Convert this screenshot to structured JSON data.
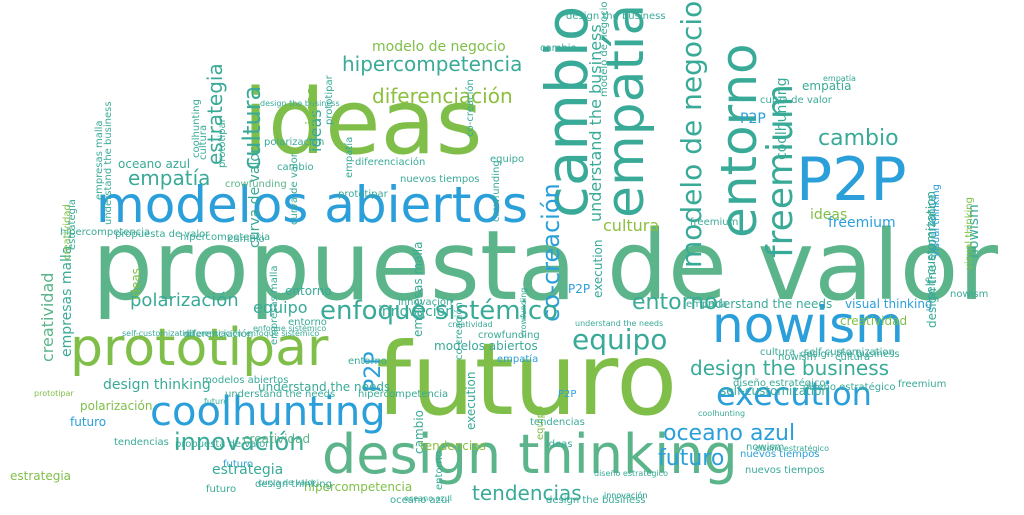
{
  "cloud": {
    "colors": {
      "blue": "#2b9fd9",
      "teal": "#3aaa98",
      "green": "#5bb48a",
      "lime": "#7fbf49",
      "olive": "#8cbf3f"
    },
    "words": [
      {
        "text": "propuesta de valor"
      },
      {
        "text": "futuro"
      },
      {
        "text": "ideas"
      },
      {
        "text": "P2P"
      },
      {
        "text": "modelos abiertos"
      },
      {
        "text": "design thinking"
      },
      {
        "text": "prototipar"
      },
      {
        "text": "nowism"
      },
      {
        "text": "cambio"
      },
      {
        "text": "empatía"
      },
      {
        "text": "entorno"
      },
      {
        "text": "coolhunting"
      },
      {
        "text": "freemium"
      },
      {
        "text": "execution"
      },
      {
        "text": "co-creación"
      },
      {
        "text": "modelo de negocio"
      },
      {
        "text": "enfoque sistémico"
      },
      {
        "text": "innovación"
      },
      {
        "text": "hipercompetencia"
      },
      {
        "text": "design the business"
      },
      {
        "text": "diferenciación"
      },
      {
        "text": "equipo"
      },
      {
        "text": "oceano azul"
      },
      {
        "text": "tendencias"
      },
      {
        "text": "futuro"
      },
      {
        "text": "polarización"
      },
      {
        "text": "cultura"
      },
      {
        "text": "estrategia"
      },
      {
        "text": "creatividad"
      },
      {
        "text": "cambio"
      },
      {
        "text": "empatía"
      },
      {
        "text": "P2P"
      },
      {
        "text": "modelo de negocio"
      },
      {
        "text": "entorno"
      },
      {
        "text": "equipo"
      },
      {
        "text": "ideas"
      },
      {
        "text": "empresas malla"
      },
      {
        "text": "understand the business"
      },
      {
        "text": "design thinking"
      },
      {
        "text": "crowfunding"
      },
      {
        "text": "visual thinking"
      },
      {
        "text": "self-customization"
      },
      {
        "text": "empatía"
      },
      {
        "text": "coolhunting"
      },
      {
        "text": "P2P"
      },
      {
        "text": "freemium"
      },
      {
        "text": "cultura"
      },
      {
        "text": "understand the needs"
      },
      {
        "text": "nowism"
      },
      {
        "text": "modelos abiertos"
      },
      {
        "text": "design the experience"
      },
      {
        "text": "ideas"
      },
      {
        "text": "estrategia"
      },
      {
        "text": "hipercompetencia"
      },
      {
        "text": "creatividad"
      },
      {
        "text": "futuro"
      },
      {
        "text": "polarización"
      },
      {
        "text": "modelo de negocio"
      },
      {
        "text": "tendencias"
      },
      {
        "text": "innovación"
      },
      {
        "text": "oceano azul"
      },
      {
        "text": "execution"
      },
      {
        "text": "curva de valor"
      },
      {
        "text": "self-customization"
      },
      {
        "text": "diseño estratégico"
      },
      {
        "text": "visual thinking"
      },
      {
        "text": "nowism"
      },
      {
        "text": "empatía"
      },
      {
        "text": "diseño estratégico"
      },
      {
        "text": "design the business"
      },
      {
        "text": "cambio"
      },
      {
        "text": "co-creación"
      },
      {
        "text": "nuevos tiempos"
      },
      {
        "text": "understand the needs"
      },
      {
        "text": "equipo"
      },
      {
        "text": "prototipar"
      },
      {
        "text": "crowfunding"
      },
      {
        "text": "entorno"
      },
      {
        "text": "cultura"
      },
      {
        "text": "curva de valor"
      },
      {
        "text": "empresas malla"
      },
      {
        "text": "cambio"
      },
      {
        "text": "entorno"
      },
      {
        "text": "execution"
      },
      {
        "text": "empatía"
      },
      {
        "text": "innovación"
      },
      {
        "text": "crowfunding"
      },
      {
        "text": "modelos abiertos"
      },
      {
        "text": "understand the needs"
      },
      {
        "text": "propuesta de valor"
      },
      {
        "text": "creatividad"
      },
      {
        "text": "tendencias"
      },
      {
        "text": "futuro"
      },
      {
        "text": "estrategia"
      },
      {
        "text": "hipercompetencia"
      },
      {
        "text": "oceano azul"
      },
      {
        "text": "innovación"
      },
      {
        "text": "diseño estratégico"
      },
      {
        "text": "self-customization"
      },
      {
        "text": "diferenciación"
      },
      {
        "text": "enfoque sistémico"
      },
      {
        "text": "ideas"
      },
      {
        "text": "nowism"
      },
      {
        "text": "cultura"
      },
      {
        "text": "freemium"
      },
      {
        "text": "P2P"
      },
      {
        "text": "nuevos tiempos"
      },
      {
        "text": "ideas"
      },
      {
        "text": "design the business"
      },
      {
        "text": "co-creación"
      },
      {
        "text": "prototipar"
      },
      {
        "text": "equipo"
      },
      {
        "text": "curva de valor"
      },
      {
        "text": "design the business"
      },
      {
        "text": "cambio"
      },
      {
        "text": "empatía"
      },
      {
        "text": "prototipar"
      },
      {
        "text": "propuesta de valor"
      },
      {
        "text": "cultura"
      },
      {
        "text": "coolhunting"
      },
      {
        "text": "hipercompetencia"
      },
      {
        "text": "empresas malla"
      },
      {
        "text": "understand the business"
      },
      {
        "text": "creatividad"
      },
      {
        "text": "estrategia"
      },
      {
        "text": "cambio"
      },
      {
        "text": "entorno"
      },
      {
        "text": "diferenciación"
      },
      {
        "text": "design thinking"
      },
      {
        "text": "self-customization"
      },
      {
        "text": "diferenciación"
      },
      {
        "text": "enfoque sistémico"
      },
      {
        "text": "creatividad"
      },
      {
        "text": "ideas"
      },
      {
        "text": "visual thinking"
      },
      {
        "text": "nowism"
      },
      {
        "text": "prototipar"
      },
      {
        "text": "polarización"
      },
      {
        "text": "futuro"
      },
      {
        "text": "tendencias"
      },
      {
        "text": "futuro"
      },
      {
        "text": "curva de valor"
      },
      {
        "text": "hipercompetencia"
      },
      {
        "text": "oceano azul"
      },
      {
        "text": "innovación"
      },
      {
        "text": "diseño estratégico"
      },
      {
        "text": "design the business"
      },
      {
        "text": "freemium"
      },
      {
        "text": "empatía"
      },
      {
        "text": "coolhunting"
      },
      {
        "text": "nuevos tiempos"
      },
      {
        "text": "understand the needs"
      },
      {
        "text": "P2P"
      },
      {
        "text": "crowfunding"
      },
      {
        "text": "empresas malla"
      },
      {
        "text": "entorno"
      }
    ]
  }
}
